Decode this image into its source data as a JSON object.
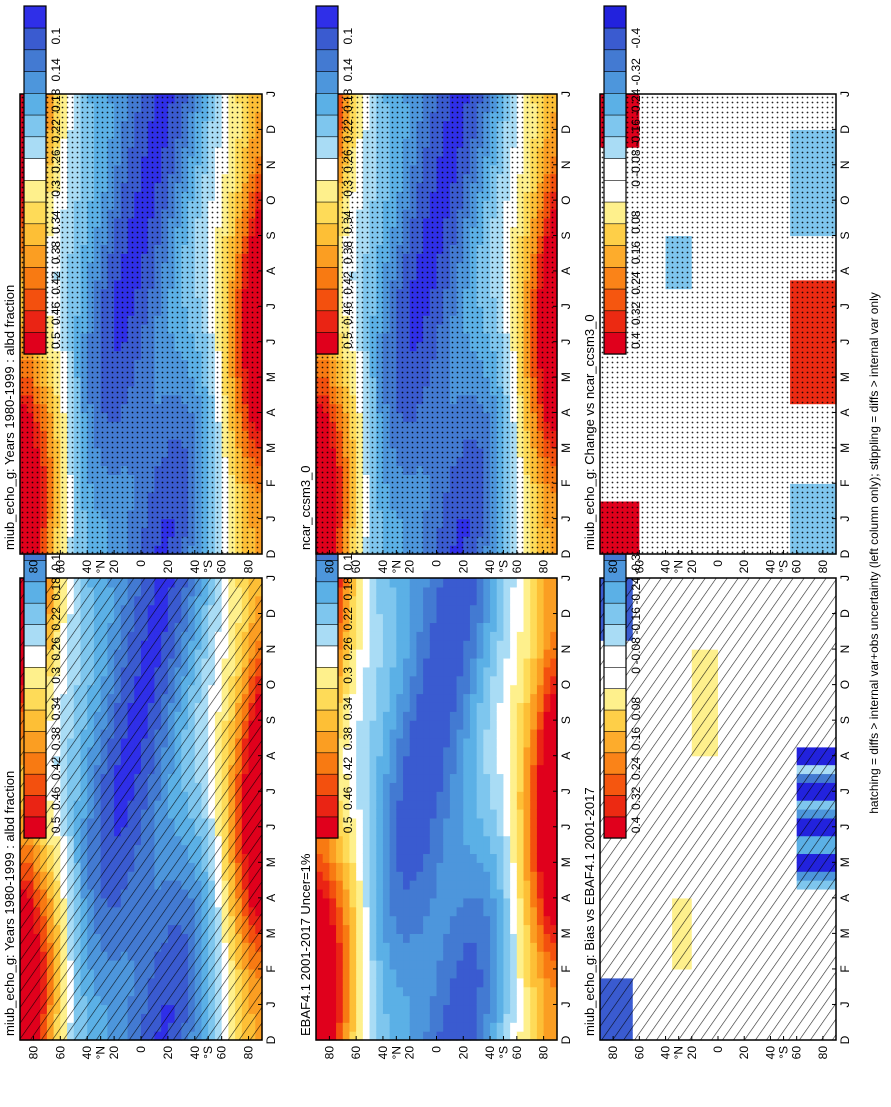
{
  "figure": {
    "footnote": "hatching = diffs > internal var+obs uncertainty (left column only); stippling = diffs > internal var only",
    "colors": {
      "abs": [
        "#e0001c",
        "#ea2414",
        "#f3500e",
        "#f87a12",
        "#fb9e22",
        "#fdbf36",
        "#fedb58",
        "#fef08c",
        "#ffffff",
        "#a9dcf5",
        "#7ec6ee",
        "#5bb0e6",
        "#4d96dc",
        "#437ad2",
        "#3a5bd0",
        "#2f2fe8"
      ],
      "diff": [
        "#e0001c",
        "#ec2a12",
        "#f5560f",
        "#fa8318",
        "#fdac2c",
        "#fecf48",
        "#fef08c",
        "#ffffff",
        "#ffffff",
        "#a9dcf5",
        "#7ec6ee",
        "#5bb0e6",
        "#4d96dc",
        "#437ad2",
        "#3a5bd0",
        "#2222dd"
      ]
    }
  },
  "chart_data": [
    {
      "type": "heatmap",
      "panel": "top-left",
      "title": "miub_echo_g: Years 1980-1999 : albd fraction",
      "x_tick_labels": [
        "D",
        "J",
        "F",
        "M",
        "A",
        "M",
        "J",
        "J",
        "A",
        "S",
        "O",
        "N",
        "D",
        "J"
      ],
      "y_tick_labels": [
        "80",
        "60",
        "40",
        "°N",
        "20",
        "0",
        "20",
        "40",
        "°S",
        "60",
        "80"
      ],
      "ylim": [
        -90,
        90
      ],
      "pattern": "hatch",
      "colorbar_labels": [
        "0.5",
        "0.46",
        "0.42",
        "0.38",
        "0.34",
        "0.3",
        "0.26",
        "0.22",
        "0.18",
        "0.14",
        "0.1"
      ],
      "colorbar_kind": "abs"
    },
    {
      "type": "heatmap",
      "panel": "top-right",
      "title": "miub_echo_g: Years 1980-1999 : albd fraction",
      "x_tick_labels": [
        "D",
        "J",
        "F",
        "M",
        "A",
        "M",
        "J",
        "J",
        "A",
        "S",
        "O",
        "N",
        "D",
        "J"
      ],
      "y_tick_labels": [
        "80",
        "60",
        "40",
        "°N",
        "20",
        "0",
        "20",
        "40",
        "°S",
        "60",
        "80"
      ],
      "ylim": [
        -90,
        90
      ],
      "pattern": "stipple",
      "colorbar_labels": [
        "0.5",
        "0.46",
        "0.42",
        "0.38",
        "0.34",
        "0.3",
        "0.26",
        "0.22",
        "0.18",
        "0.14",
        "0.1"
      ],
      "colorbar_kind": "abs"
    },
    {
      "type": "heatmap",
      "panel": "middle-left",
      "title": "EBAF4.1 2001-2017 Uncer=1%",
      "x_tick_labels": [
        "D",
        "J",
        "F",
        "M",
        "A",
        "M",
        "J",
        "J",
        "A",
        "S",
        "O",
        "N",
        "D",
        "J"
      ],
      "y_tick_labels": [
        "80",
        "60",
        "40",
        "°N",
        "20",
        "0",
        "20",
        "40",
        "°S",
        "60",
        "80"
      ],
      "ylim": [
        -90,
        90
      ],
      "pattern": "none",
      "colorbar_labels": [
        "0.5",
        "0.46",
        "0.42",
        "0.38",
        "0.34",
        "0.3",
        "0.26",
        "0.22",
        "0.18",
        "0.14",
        "0.1"
      ],
      "colorbar_kind": "abs"
    },
    {
      "type": "heatmap",
      "panel": "middle-right",
      "title": "ncar_ccsm3_0",
      "x_tick_labels": [
        "D",
        "J",
        "F",
        "M",
        "A",
        "M",
        "J",
        "J",
        "A",
        "S",
        "O",
        "N",
        "D",
        "J"
      ],
      "y_tick_labels": [
        "80",
        "60",
        "40",
        "°N",
        "20",
        "0",
        "20",
        "40",
        "°S",
        "60",
        "80"
      ],
      "ylim": [
        -90,
        90
      ],
      "pattern": "stipple",
      "colorbar_labels": [
        "0.5",
        "0.46",
        "0.42",
        "0.38",
        "0.34",
        "0.3",
        "0.26",
        "0.22",
        "0.18",
        "0.14",
        "0.1"
      ],
      "colorbar_kind": "abs"
    },
    {
      "type": "heatmap",
      "panel": "bottom-left",
      "title": "miub_echo_g: Bias vs EBAF4.1 2001-2017",
      "x_tick_labels": [
        "D",
        "J",
        "F",
        "M",
        "A",
        "M",
        "J",
        "J",
        "A",
        "S",
        "O",
        "N",
        "D",
        "J"
      ],
      "y_tick_labels": [
        "80",
        "60",
        "40",
        "°N",
        "20",
        "0",
        "20",
        "40",
        "°S",
        "60",
        "80"
      ],
      "ylim": [
        -90,
        90
      ],
      "pattern": "hatch",
      "colorbar_labels": [
        "0.4",
        "0.32",
        "0.24",
        "0.16",
        "0.08",
        "0",
        "-0.08",
        "-0.16",
        "-0.24",
        "-0.32",
        "-0.4"
      ],
      "colorbar_kind": "diff"
    },
    {
      "type": "heatmap",
      "panel": "bottom-right",
      "title": "miub_echo_g: Change vs ncar_ccsm3_0",
      "x_tick_labels": [
        "D",
        "J",
        "F",
        "M",
        "A",
        "M",
        "J",
        "J",
        "A",
        "S",
        "O",
        "N",
        "D",
        "J"
      ],
      "y_tick_labels": [
        "80",
        "60",
        "40",
        "°N",
        "20",
        "0",
        "20",
        "40",
        "°S",
        "60",
        "80"
      ],
      "ylim": [
        -90,
        90
      ],
      "pattern": "stipple",
      "colorbar_labels": [
        "0.4",
        "0.32",
        "0.24",
        "0.16",
        "0.08",
        "0",
        "-0.08",
        "-0.16",
        "-0.24",
        "-0.32",
        "-0.4"
      ],
      "colorbar_kind": "diff"
    }
  ]
}
